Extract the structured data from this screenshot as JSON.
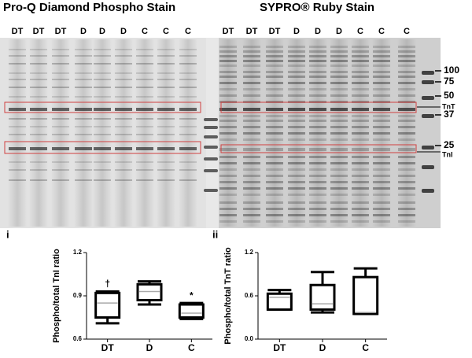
{
  "gels": {
    "left": {
      "title": "Pro-Q Diamond Phospho Stain",
      "lanes": [
        "DT",
        "DT",
        "DT",
        "D",
        "D",
        "D",
        "C",
        "C",
        "C"
      ]
    },
    "right": {
      "title": "SYPRO® Ruby Stain",
      "lanes": [
        "DT",
        "DT",
        "DT",
        "D",
        "D",
        "D",
        "C",
        "C",
        "C"
      ]
    },
    "markers": [
      "100",
      "75",
      "50",
      "37",
      "25"
    ],
    "band_labels": [
      "TnT",
      "TnI"
    ]
  },
  "chart_data": [
    {
      "type": "box",
      "panel": "i",
      "y_label": "Phospho/total TnI ratio",
      "categories": [
        "DT",
        "D",
        "C"
      ],
      "min": [
        0.71,
        0.84,
        0.74
      ],
      "q1": [
        0.75,
        0.87,
        0.75
      ],
      "median": [
        0.85,
        0.93,
        0.78
      ],
      "q3": [
        0.92,
        0.98,
        0.84
      ],
      "max": [
        0.93,
        1.0,
        0.85
      ],
      "annotations": [
        "†",
        null,
        "*"
      ],
      "ylim": [
        0.6,
        1.2
      ],
      "yticks": [
        0.6,
        0.9,
        1.2
      ],
      "color": "#000000",
      "median_color": "#aaaaaa"
    },
    {
      "type": "box",
      "panel": "ii",
      "y_label": "Phospho/total TnT ratio",
      "categories": [
        "DT",
        "D",
        "C"
      ],
      "min": [
        0.41,
        0.37,
        0.35
      ],
      "q1": [
        0.41,
        0.41,
        0.35
      ],
      "median": [
        0.58,
        0.49,
        0.37
      ],
      "q3": [
        0.63,
        0.75,
        0.86
      ],
      "max": [
        0.68,
        0.93,
        0.98
      ],
      "ylim": [
        0,
        1.2
      ],
      "yticks": [
        {
          "value": 0,
          "label": "0.0"
        },
        0.6,
        1.2
      ],
      "color": "#000000",
      "median_color": "#aaaaaa"
    }
  ]
}
